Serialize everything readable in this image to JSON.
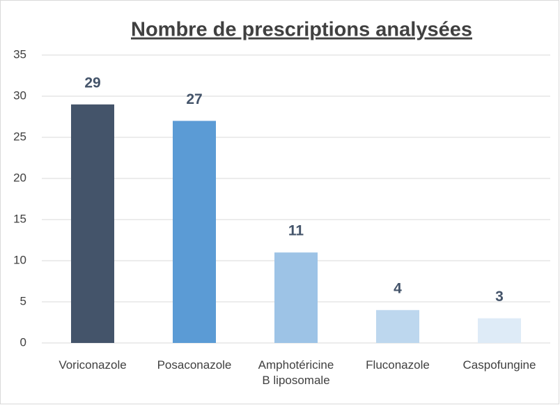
{
  "chart_data": {
    "type": "bar",
    "title": "Nombre de prescriptions analysées",
    "categories": [
      "Voriconazole",
      "Posaconazole",
      "Amphotéricine B liposomale",
      "Fluconazole",
      "Caspofungine"
    ],
    "values": [
      29,
      27,
      11,
      4,
      3
    ],
    "colors": [
      "#44546a",
      "#5b9bd5",
      "#9dc3e6",
      "#bdd7ee",
      "#deebf7"
    ],
    "ylim": [
      0,
      35
    ],
    "yticks": [
      0,
      5,
      10,
      15,
      20,
      25,
      30,
      35
    ],
    "grid": true,
    "value_labels_shown": true
  }
}
